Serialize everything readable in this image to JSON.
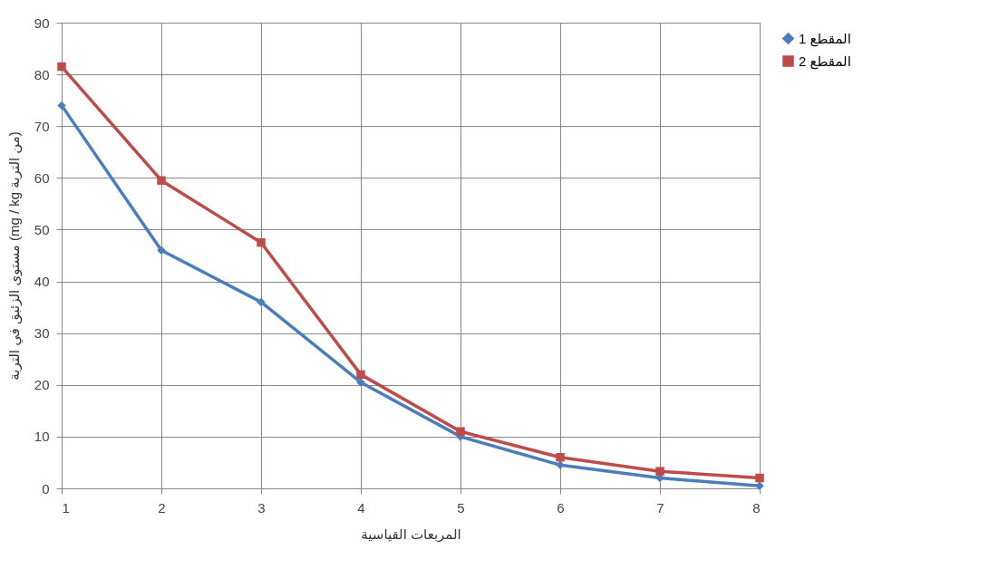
{
  "chart_data": {
    "type": "line",
    "xlabel": "المربعات القياسية",
    "ylabel": "مستوى الزئبق في التربة (mg / kg من التربة)",
    "x": [
      1,
      2,
      3,
      4,
      5,
      6,
      7,
      8
    ],
    "xlim": [
      1,
      8
    ],
    "xticks": [
      1,
      2,
      3,
      4,
      5,
      6,
      7,
      8
    ],
    "ylim": [
      0,
      90
    ],
    "yticks": [
      0,
      10,
      20,
      30,
      40,
      50,
      60,
      70,
      80,
      90
    ],
    "grid": true,
    "legend": "right",
    "line_style": "solid",
    "series": [
      {
        "name": "المقطع 1",
        "color": "#4a7ebb",
        "marker": "diamond",
        "values": [
          74,
          46,
          36,
          20.5,
          10,
          4.5,
          2,
          0.5
        ]
      },
      {
        "name": "المقطع 2",
        "color": "#be4b48",
        "marker": "square",
        "values": [
          81.5,
          59.5,
          47.5,
          22,
          11,
          6,
          3.3,
          2
        ]
      }
    ]
  }
}
